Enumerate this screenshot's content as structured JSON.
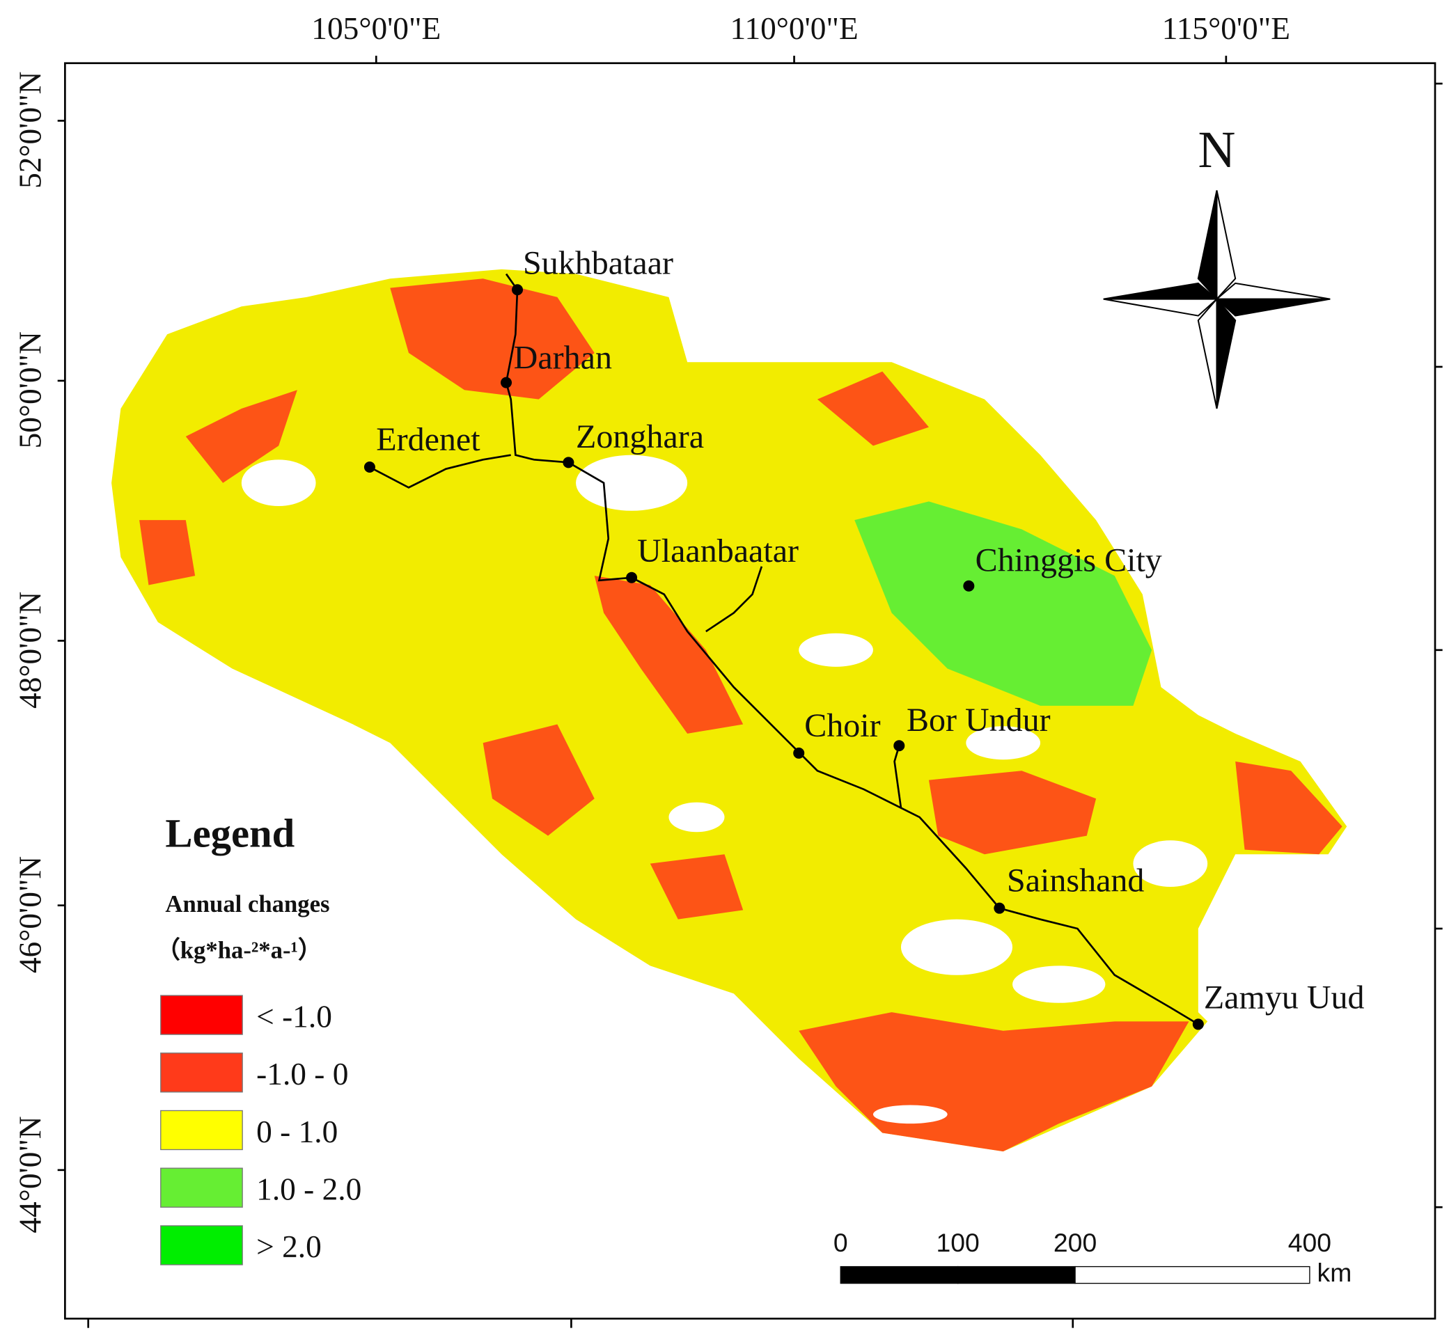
{
  "graticule": {
    "longitudes": [
      "105°0'0\"E",
      "110°0'0\"E",
      "115°0'0\"E"
    ],
    "latitudes": [
      "52°0'0\"N",
      "50°0'0\"N",
      "48°0'0\"N",
      "46°0'0\"N",
      "44°0'0\"N"
    ]
  },
  "north_arrow": "N",
  "cities": [
    "Sukhbataar",
    "Darhan",
    "Erdenet",
    "Zonghara",
    "Ulaanbaatar",
    "Chinggis City",
    "Choir",
    "Bor Undur",
    "Sainshand",
    "Zamyu Uud"
  ],
  "legend": {
    "title": "Legend",
    "subtitle": "Annual changes",
    "unit": "（kg*ha-²*a-¹）",
    "items": [
      {
        "label": "< -1.0",
        "color": "#ff0000"
      },
      {
        "label": "-1.0 - 0",
        "color": "#ff3a1a"
      },
      {
        "label": "0 - 1.0",
        "color": "#ffff00"
      },
      {
        "label": "1.0 - 2.0",
        "color": "#66ee33"
      },
      {
        "label": "> 2.0",
        "color": "#00ee00"
      }
    ]
  },
  "scale_bar": {
    "ticks": [
      0,
      100,
      200,
      400
    ],
    "unit": "km"
  }
}
